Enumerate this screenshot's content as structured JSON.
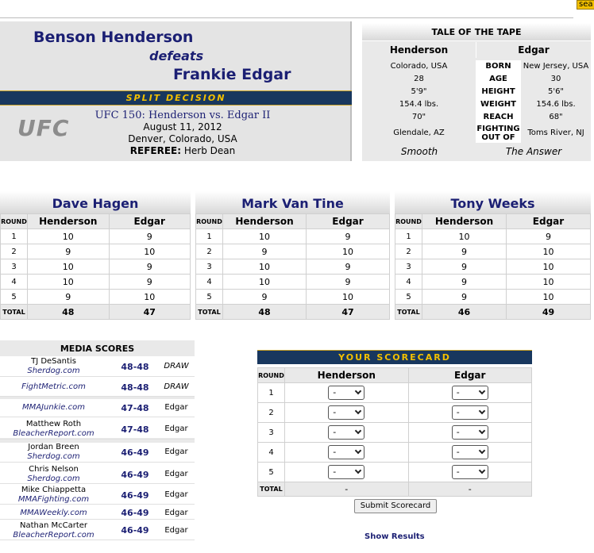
{
  "search": {
    "button_label": "sea"
  },
  "result": {
    "winner": "Benson Henderson",
    "verb": "defeats",
    "loser": "Frankie Edgar",
    "decision": "SPLIT DECISION",
    "logo_text": "UFC",
    "event": "UFC 150: Henderson vs. Edgar II",
    "date": "August 11, 2012",
    "location": "Denver, Colorado, USA",
    "referee_label": "REFEREE:",
    "referee": "Herb Dean"
  },
  "tape": {
    "title": "TALE OF THE TAPE",
    "fighter1": "Henderson",
    "fighter2": "Edgar",
    "rows": [
      {
        "label": "BORN",
        "f1": "Colorado, USA",
        "f2": "New Jersey, USA"
      },
      {
        "label": "AGE",
        "f1": "28",
        "f2": "30"
      },
      {
        "label": "HEIGHT",
        "f1": "5'9\"",
        "f2": "5'6\""
      },
      {
        "label": "WEIGHT",
        "f1": "154.4 lbs.",
        "f2": "154.6 lbs."
      },
      {
        "label": "REACH",
        "f1": "70\"",
        "f2": "68\""
      },
      {
        "label_line1": "FIGHTING",
        "label_line2": "OUT OF",
        "f1": "Glendale, AZ",
        "f2": "Toms River, NJ"
      }
    ],
    "nick1": "Smooth",
    "nick2": "The Answer"
  },
  "judges": [
    {
      "name": "Dave Hagen",
      "rounds": [
        [
          "10",
          "9"
        ],
        [
          "9",
          "10"
        ],
        [
          "10",
          "9"
        ],
        [
          "10",
          "9"
        ],
        [
          "9",
          "10"
        ]
      ],
      "total": [
        "48",
        "47"
      ]
    },
    {
      "name": "Mark Van Tine",
      "rounds": [
        [
          "10",
          "9"
        ],
        [
          "9",
          "10"
        ],
        [
          "10",
          "9"
        ],
        [
          "10",
          "9"
        ],
        [
          "9",
          "10"
        ]
      ],
      "total": [
        "48",
        "47"
      ]
    },
    {
      "name": "Tony Weeks",
      "rounds": [
        [
          "10",
          "9"
        ],
        [
          "9",
          "10"
        ],
        [
          "9",
          "10"
        ],
        [
          "9",
          "10"
        ],
        [
          "9",
          "10"
        ]
      ],
      "total": [
        "46",
        "49"
      ]
    }
  ],
  "judge_table": {
    "round_label": "ROUND",
    "total_label": "TOTAL",
    "col1": "Henderson",
    "col2": "Edgar",
    "round_numbers": [
      "1",
      "2",
      "3",
      "4",
      "5"
    ]
  },
  "media": {
    "title": "MEDIA SCORES",
    "entries": [
      {
        "name": "TJ DeSantis",
        "outlet": "Sherdog.com",
        "score": "48-48",
        "result": "DRAW"
      },
      {
        "name": "",
        "outlet": "FightMetric.com",
        "score": "48-48",
        "result": "DRAW"
      },
      {
        "name": "",
        "outlet": "MMAJunkie.com",
        "score": "47-48",
        "result": "Edgar"
      },
      {
        "name": "Matthew Roth",
        "outlet": "BleacherReport.com",
        "score": "47-48",
        "result": "Edgar"
      },
      {
        "name": "Jordan Breen",
        "outlet": "Sherdog.com",
        "score": "46-49",
        "result": "Edgar"
      },
      {
        "name": "Chris Nelson",
        "outlet": "Sherdog.com",
        "score": "46-49",
        "result": "Edgar"
      },
      {
        "name": "Mike Chiappetta",
        "outlet": "MMAFighting.com",
        "score": "46-49",
        "result": "Edgar"
      },
      {
        "name": "",
        "outlet": "MMAWeekly.com",
        "score": "46-49",
        "result": "Edgar"
      },
      {
        "name": "Nathan McCarter",
        "outlet": "BleacherReport.com",
        "score": "46-49",
        "result": "Edgar"
      }
    ]
  },
  "scorecard": {
    "title": "YOUR SCORECARD",
    "round_label": "ROUND",
    "total_label": "TOTAL",
    "col1": "Henderson",
    "col2": "Edgar",
    "rounds": [
      "1",
      "2",
      "3",
      "4",
      "5"
    ],
    "select_value": "-",
    "total1": "-",
    "total2": "-",
    "submit_label": "Submit Scorecard",
    "show_results": "Show Results"
  }
}
